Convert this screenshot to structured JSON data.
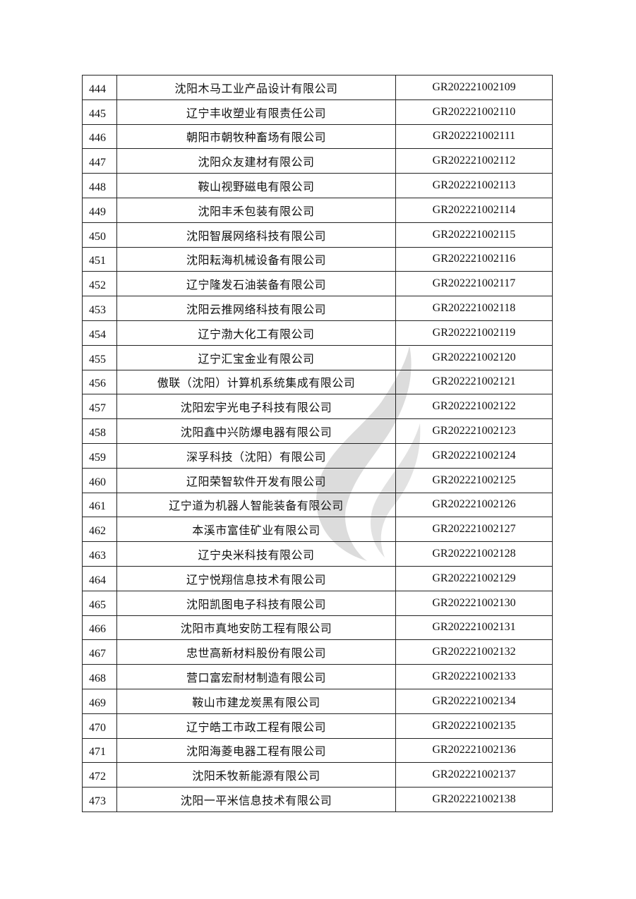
{
  "table": {
    "rows": [
      {
        "no": "444",
        "name": "沈阳木马工业产品设计有限公司",
        "code": "GR202221002109"
      },
      {
        "no": "445",
        "name": "辽宁丰收塑业有限责任公司",
        "code": "GR202221002110"
      },
      {
        "no": "446",
        "name": "朝阳市朝牧种畜场有限公司",
        "code": "GR202221002111"
      },
      {
        "no": "447",
        "name": "沈阳众友建材有限公司",
        "code": "GR202221002112"
      },
      {
        "no": "448",
        "name": "鞍山视野磁电有限公司",
        "code": "GR202221002113"
      },
      {
        "no": "449",
        "name": "沈阳丰禾包装有限公司",
        "code": "GR202221002114"
      },
      {
        "no": "450",
        "name": "沈阳智展网络科技有限公司",
        "code": "GR202221002115"
      },
      {
        "no": "451",
        "name": "沈阳耘海机械设备有限公司",
        "code": "GR202221002116"
      },
      {
        "no": "452",
        "name": "辽宁隆发石油装备有限公司",
        "code": "GR202221002117"
      },
      {
        "no": "453",
        "name": "沈阳云推网络科技有限公司",
        "code": "GR202221002118"
      },
      {
        "no": "454",
        "name": "辽宁渤大化工有限公司",
        "code": "GR202221002119"
      },
      {
        "no": "455",
        "name": "辽宁汇宝金业有限公司",
        "code": "GR202221002120"
      },
      {
        "no": "456",
        "name": "傲联（沈阳）计算机系统集成有限公司",
        "code": "GR202221002121"
      },
      {
        "no": "457",
        "name": "沈阳宏宇光电子科技有限公司",
        "code": "GR202221002122"
      },
      {
        "no": "458",
        "name": "沈阳鑫中兴防爆电器有限公司",
        "code": "GR202221002123"
      },
      {
        "no": "459",
        "name": "深孚科技（沈阳）有限公司",
        "code": "GR202221002124"
      },
      {
        "no": "460",
        "name": "辽阳荣智软件开发有限公司",
        "code": "GR202221002125"
      },
      {
        "no": "461",
        "name": "辽宁道为机器人智能装备有限公司",
        "code": "GR202221002126"
      },
      {
        "no": "462",
        "name": "本溪市富佳矿业有限公司",
        "code": "GR202221002127"
      },
      {
        "no": "463",
        "name": "辽宁央米科技有限公司",
        "code": "GR202221002128"
      },
      {
        "no": "464",
        "name": "辽宁悦翔信息技术有限公司",
        "code": "GR202221002129"
      },
      {
        "no": "465",
        "name": "沈阳凯图电子科技有限公司",
        "code": "GR202221002130"
      },
      {
        "no": "466",
        "name": "沈阳市真地安防工程有限公司",
        "code": "GR202221002131"
      },
      {
        "no": "467",
        "name": "忠世高新材料股份有限公司",
        "code": "GR202221002132"
      },
      {
        "no": "468",
        "name": "营口富宏耐材制造有限公司",
        "code": "GR202221002133"
      },
      {
        "no": "469",
        "name": "鞍山市建龙炭黑有限公司",
        "code": "GR202221002134"
      },
      {
        "no": "470",
        "name": "辽宁皓工市政工程有限公司",
        "code": "GR202221002135"
      },
      {
        "no": "471",
        "name": "沈阳海菱电器工程有限公司",
        "code": "GR202221002136"
      },
      {
        "no": "472",
        "name": "沈阳禾牧新能源有限公司",
        "code": "GR202221002137"
      },
      {
        "no": "473",
        "name": "沈阳一平米信息技术有限公司",
        "code": "GR202221002138"
      }
    ]
  },
  "watermark": {
    "icon": "flame-leaf-watermark",
    "color": "#d9d9d9"
  }
}
